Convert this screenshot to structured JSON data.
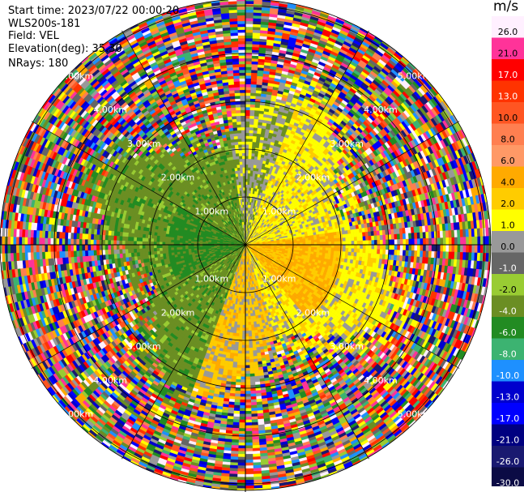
{
  "info": {
    "start_time": "Start time: 2023/07/22 00:00:20",
    "instrument": "WLS200s-181",
    "field": "Field: VEL",
    "elevation": "Elevation(deg): 35.30",
    "nrays": "NRays: 180"
  },
  "colorbar": {
    "unit": "m/s",
    "labels": [
      "26.0",
      "21.0",
      "17.0",
      "13.0",
      "10.0",
      "8.0",
      "6.0",
      "4.0",
      "2.0",
      "1.0",
      "0.0",
      "-1.0",
      "-2.0",
      "-4.0",
      "-6.0",
      "-8.0",
      "-10.0",
      "-13.0",
      "-17.0",
      "-21.0",
      "-26.0",
      "-30.0"
    ],
    "colors": [
      "#fff0ff",
      "#ff3399",
      "#ff0000",
      "#ff3300",
      "#ff5522",
      "#ff7f50",
      "#ff9966",
      "#ffaa00",
      "#ffcc00",
      "#ffff00",
      "#999999",
      "#666666",
      "#99cc33",
      "#6b8e23",
      "#228b22",
      "#3cb371",
      "#1e90ff",
      "#0000cd",
      "#0000ff",
      "#000080",
      "#191970",
      "#0b0b45"
    ]
  },
  "range_rings": {
    "labels": [
      "1.00km",
      "2.00km",
      "3.00km",
      "4.00km",
      "5.00km"
    ]
  },
  "chart_data": {
    "type": "heatmap",
    "title": "",
    "field": "VEL",
    "unit": "m/s",
    "elevation_deg": 35.3,
    "nrays": 180,
    "range_km": [
      0,
      5.1
    ],
    "range_rings_km": [
      1,
      2,
      3,
      4,
      5
    ],
    "color_levels": [
      -30,
      -26,
      -21,
      -17,
      -13,
      -10,
      -8,
      -6,
      -4,
      -2,
      -1,
      0,
      1,
      2,
      4,
      6,
      8,
      10,
      13,
      17,
      21,
      26
    ],
    "description": "Plan position indicator of radial velocity; coherent region within ~3 km (negative velocities to the west, positive to the east), noisy values beyond."
  }
}
